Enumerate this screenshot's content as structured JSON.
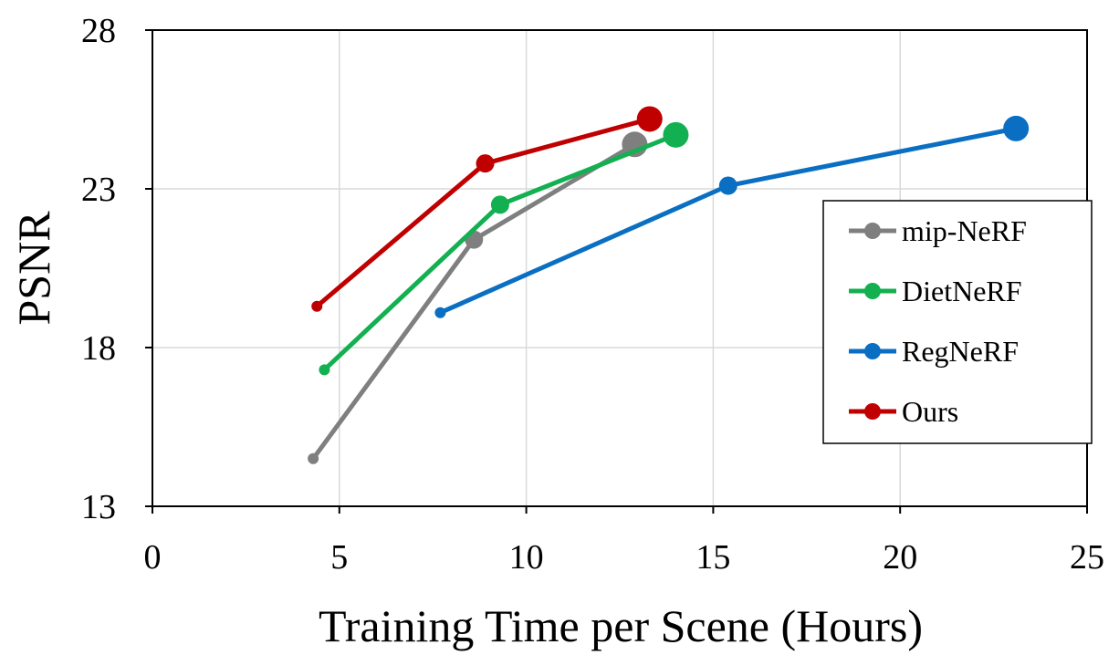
{
  "chart_data": {
    "type": "line",
    "title": "",
    "xlabel": "Training Time per Scene (Hours)",
    "ylabel": "PSNR",
    "xlim": [
      0,
      25
    ],
    "ylim": [
      13,
      28
    ],
    "xticks": [
      0,
      5,
      10,
      15,
      20,
      25
    ],
    "yticks": [
      13,
      18,
      23,
      28
    ],
    "xtick_labels": [
      "0",
      "5",
      "10",
      "15",
      "20",
      "25"
    ],
    "ytick_labels": [
      "13",
      "18",
      "23",
      "28"
    ],
    "grid": true,
    "legend_position": "right",
    "series": [
      {
        "name": "mip-NeRF",
        "color": "#7f7f7f",
        "points": [
          {
            "x": 4.3,
            "y": 14.5
          },
          {
            "x": 8.6,
            "y": 21.4
          },
          {
            "x": 12.9,
            "y": 24.4
          }
        ]
      },
      {
        "name": "DietNeRF",
        "color": "#12b050",
        "points": [
          {
            "x": 4.6,
            "y": 17.3
          },
          {
            "x": 9.3,
            "y": 22.5
          },
          {
            "x": 14.0,
            "y": 24.7
          }
        ]
      },
      {
        "name": "RegNeRF",
        "color": "#0a6fc2",
        "points": [
          {
            "x": 7.7,
            "y": 19.1
          },
          {
            "x": 15.4,
            "y": 23.1
          },
          {
            "x": 23.1,
            "y": 24.9
          }
        ]
      },
      {
        "name": "Ours",
        "color": "#c00000",
        "points": [
          {
            "x": 4.4,
            "y": 19.3
          },
          {
            "x": 8.9,
            "y": 23.8
          },
          {
            "x": 13.3,
            "y": 25.2
          }
        ]
      }
    ]
  }
}
